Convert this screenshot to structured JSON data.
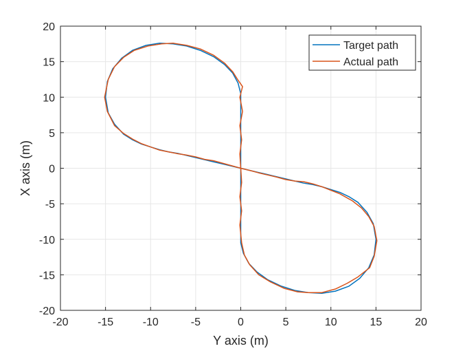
{
  "chart_data": {
    "type": "line",
    "title": "",
    "xlabel": "Y axis (m)",
    "ylabel": "X axis (m)",
    "xlim": [
      -20,
      20
    ],
    "ylim": [
      -20,
      20
    ],
    "xticks": [
      -20,
      -15,
      -10,
      -5,
      0,
      5,
      10,
      15,
      20
    ],
    "yticks": [
      -20,
      -15,
      -10,
      -5,
      0,
      5,
      10,
      15,
      20
    ],
    "grid": true,
    "legend_position": "top-right",
    "series": [
      {
        "name": "Target path",
        "color": "#0072BD",
        "points": [
          [
            0,
            0
          ],
          [
            -1,
            0.3
          ],
          [
            -2,
            0.6
          ],
          [
            -3,
            0.9
          ],
          [
            -4,
            1.2
          ],
          [
            -5,
            1.5
          ],
          [
            -6,
            1.8
          ],
          [
            -7,
            2.1
          ],
          [
            -8,
            2.3
          ],
          [
            -9,
            2.6
          ],
          [
            -10,
            3.0
          ],
          [
            -11,
            3.4
          ],
          [
            -12,
            4.0
          ],
          [
            -13,
            4.8
          ],
          [
            -14,
            6.2
          ],
          [
            -14.7,
            7.8
          ],
          [
            -15,
            10
          ],
          [
            -14.8,
            12.2
          ],
          [
            -14.2,
            14.0
          ],
          [
            -13.2,
            15.5
          ],
          [
            -12,
            16.6
          ],
          [
            -10.5,
            17.3
          ],
          [
            -9,
            17.6
          ],
          [
            -7.5,
            17.5
          ],
          [
            -6,
            17.2
          ],
          [
            -4.5,
            16.6
          ],
          [
            -3,
            15.7
          ],
          [
            -1.8,
            14.6
          ],
          [
            -0.9,
            13.4
          ],
          [
            -0.3,
            12
          ],
          [
            0,
            10.5
          ],
          [
            0,
            8
          ],
          [
            0,
            5
          ],
          [
            0,
            2
          ],
          [
            0,
            0
          ],
          [
            0,
            -2
          ],
          [
            0,
            -5
          ],
          [
            0,
            -8
          ],
          [
            0,
            -10.5
          ],
          [
            0.3,
            -12
          ],
          [
            0.9,
            -13.4
          ],
          [
            1.8,
            -14.6
          ],
          [
            3,
            -15.7
          ],
          [
            4.5,
            -16.6
          ],
          [
            6,
            -17.2
          ],
          [
            7.5,
            -17.5
          ],
          [
            9,
            -17.6
          ],
          [
            10.5,
            -17.3
          ],
          [
            12,
            -16.6
          ],
          [
            13.2,
            -15.5
          ],
          [
            14.2,
            -14.0
          ],
          [
            14.8,
            -12.2
          ],
          [
            15,
            -10
          ],
          [
            14.7,
            -7.8
          ],
          [
            14,
            -6.2
          ],
          [
            13,
            -4.8
          ],
          [
            12,
            -4.0
          ],
          [
            11,
            -3.4
          ],
          [
            10,
            -3.0
          ],
          [
            9,
            -2.6
          ],
          [
            8,
            -2.3
          ],
          [
            7,
            -2.1
          ],
          [
            6,
            -1.8
          ],
          [
            5,
            -1.5
          ],
          [
            4,
            -1.2
          ],
          [
            3,
            -0.9
          ],
          [
            2,
            -0.6
          ],
          [
            1,
            -0.3
          ],
          [
            0,
            0
          ]
        ]
      },
      {
        "name": "Actual path",
        "color": "#D95319",
        "points": [
          [
            0,
            0
          ],
          [
            -1,
            0.35
          ],
          [
            -2,
            0.7
          ],
          [
            -3,
            1.05
          ],
          [
            -4,
            1.25
          ],
          [
            -5,
            1.6
          ],
          [
            -6,
            1.85
          ],
          [
            -7,
            2.05
          ],
          [
            -8,
            2.3
          ],
          [
            -9,
            2.55
          ],
          [
            -10,
            3.0
          ],
          [
            -11,
            3.45
          ],
          [
            -12,
            4.1
          ],
          [
            -13,
            4.9
          ],
          [
            -14,
            6.0
          ],
          [
            -14.8,
            8.0
          ],
          [
            -15.1,
            10
          ],
          [
            -14.7,
            12.5
          ],
          [
            -14.0,
            14.3
          ],
          [
            -13.0,
            15.6
          ],
          [
            -11.8,
            16.6
          ],
          [
            -10.3,
            17.2
          ],
          [
            -8.8,
            17.5
          ],
          [
            -7.5,
            17.6
          ],
          [
            -6,
            17.3
          ],
          [
            -4.5,
            16.8
          ],
          [
            -3,
            15.9
          ],
          [
            -1.8,
            14.8
          ],
          [
            -0.9,
            13.6
          ],
          [
            -0.3,
            12.4
          ],
          [
            0.2,
            11.5
          ],
          [
            -0.1,
            10
          ],
          [
            0.2,
            8
          ],
          [
            -0.1,
            6
          ],
          [
            0.1,
            4
          ],
          [
            -0.1,
            2
          ],
          [
            0,
            0
          ],
          [
            0.1,
            -2
          ],
          [
            -0.1,
            -4
          ],
          [
            0.1,
            -6
          ],
          [
            -0.1,
            -8
          ],
          [
            0.1,
            -10.5
          ],
          [
            0.4,
            -12.2
          ],
          [
            1.0,
            -13.6
          ],
          [
            2.0,
            -15
          ],
          [
            3.3,
            -16.0
          ],
          [
            4.8,
            -16.9
          ],
          [
            6.3,
            -17.4
          ],
          [
            7.5,
            -17.5
          ],
          [
            9,
            -17.5
          ],
          [
            10.5,
            -17.0
          ],
          [
            11.8,
            -16.2
          ],
          [
            13.0,
            -15.3
          ],
          [
            14.3,
            -14.0
          ],
          [
            14.8,
            -12.4
          ],
          [
            15.1,
            -10.2
          ],
          [
            14.8,
            -8.2
          ],
          [
            14.2,
            -6.8
          ],
          [
            13.4,
            -5.6
          ],
          [
            12.4,
            -4.6
          ],
          [
            11,
            -3.6
          ],
          [
            10,
            -3.1
          ],
          [
            9,
            -2.6
          ],
          [
            8,
            -2.2
          ],
          [
            7,
            -1.9
          ],
          [
            6,
            -1.8
          ],
          [
            5,
            -1.6
          ],
          [
            4,
            -1.25
          ],
          [
            3,
            -0.95
          ],
          [
            2,
            -0.65
          ],
          [
            1,
            -0.3
          ],
          [
            0,
            0
          ]
        ]
      }
    ]
  }
}
